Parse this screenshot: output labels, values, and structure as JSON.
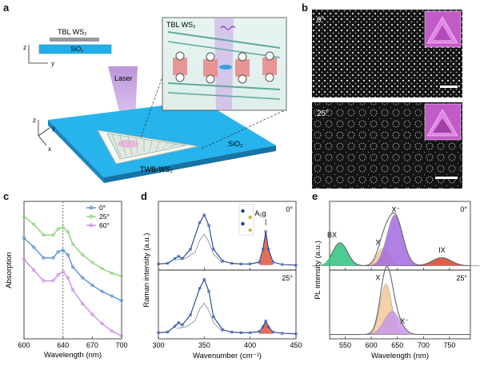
{
  "panels": {
    "a": {
      "letter": "a",
      "substrate_top": "TBL WS₂",
      "substrate_bottom": "SiO₂",
      "axis_z": "z",
      "axis_y": "y",
      "axis_x": "x",
      "laser_label": "Laser",
      "inset_title": "TBL WS₂",
      "sample_label": "TWB-WS₂",
      "substrate_label": "SiO₂"
    },
    "b": {
      "letter": "b",
      "top_angle": "0°",
      "bottom_angle": "25°"
    },
    "c": {
      "letter": "c"
    },
    "d": {
      "letter": "d",
      "peak_label": "A₁g"
    },
    "e": {
      "letter": "e"
    }
  },
  "chart_data": [
    {
      "id": "c",
      "type": "line",
      "title": "",
      "xlabel": "Wavelength (nm)",
      "ylabel": "Absorption",
      "xlim": [
        600,
        700
      ],
      "xticks": [
        600,
        640,
        670,
        700
      ],
      "xtick_labels": [
        "600",
        "640",
        "670",
        "700"
      ],
      "vline_x": 640,
      "legend": [
        "0°",
        "25°",
        "60°"
      ],
      "series": [
        {
          "name": "0°",
          "color": "#5b8fd6",
          "x": [
            600,
            610,
            620,
            630,
            635,
            640,
            645,
            650,
            660,
            670,
            680,
            690,
            700
          ],
          "y": [
            0.66,
            0.6,
            0.53,
            0.53,
            0.57,
            0.58,
            0.55,
            0.47,
            0.4,
            0.35,
            0.31,
            0.28,
            0.25
          ]
        },
        {
          "name": "25°",
          "color": "#8fd17b",
          "x": [
            600,
            610,
            620,
            630,
            635,
            640,
            645,
            650,
            660,
            670,
            680,
            690,
            700
          ],
          "y": [
            0.8,
            0.75,
            0.68,
            0.68,
            0.72,
            0.73,
            0.7,
            0.62,
            0.55,
            0.5,
            0.46,
            0.43,
            0.41
          ]
        },
        {
          "name": "60°",
          "color": "#c890e0",
          "x": [
            600,
            610,
            620,
            630,
            635,
            640,
            645,
            650,
            660,
            670,
            680,
            690,
            700
          ],
          "y": [
            0.52,
            0.45,
            0.38,
            0.38,
            0.42,
            0.44,
            0.4,
            0.32,
            0.23,
            0.16,
            0.1,
            0.05,
            0.02
          ]
        }
      ]
    },
    {
      "id": "d",
      "type": "line",
      "xlabel": "Wavenumber (cm⁻¹)",
      "ylabel": "Raman intensity (a.u.)",
      "xlim": [
        300,
        450
      ],
      "xticks": [
        300,
        350,
        400,
        450
      ],
      "xtick_labels": [
        "300",
        "350",
        "400",
        "450"
      ],
      "subplots": [
        {
          "angle": "0°",
          "x": [
            300,
            310,
            318,
            322,
            326,
            335,
            345,
            350,
            355,
            360,
            370,
            380,
            390,
            400,
            410,
            414,
            417,
            420,
            425,
            435,
            450
          ],
          "y": [
            0.05,
            0.06,
            0.14,
            0.18,
            0.14,
            0.3,
            0.75,
            0.88,
            0.7,
            0.3,
            0.1,
            0.06,
            0.05,
            0.05,
            0.08,
            0.3,
            0.6,
            0.3,
            0.08,
            0.04,
            0.03
          ]
        },
        {
          "angle": "25°",
          "x": [
            300,
            310,
            318,
            322,
            326,
            335,
            345,
            350,
            355,
            360,
            370,
            380,
            390,
            400,
            410,
            414,
            417,
            420,
            425,
            435,
            450
          ],
          "y": [
            0.05,
            0.06,
            0.16,
            0.22,
            0.18,
            0.35,
            0.8,
            0.95,
            0.75,
            0.32,
            0.1,
            0.06,
            0.05,
            0.05,
            0.07,
            0.15,
            0.25,
            0.15,
            0.06,
            0.04,
            0.03
          ]
        }
      ]
    },
    {
      "id": "e",
      "type": "area",
      "xlabel": "Wavelength (nm)",
      "ylabel": "PL intensity (a.u.)",
      "xlim": [
        520,
        790
      ],
      "xticks": [
        550,
        600,
        650,
        700,
        750
      ],
      "xtick_labels": [
        "550",
        "600",
        "650",
        "700",
        "750"
      ],
      "subplots": [
        {
          "angle": "0°",
          "peaks": [
            {
              "label": "BX",
              "center": 540,
              "height": 0.4,
              "width": 14,
              "color": "#2ec27e"
            },
            {
              "label": "X",
              "center": 622,
              "height": 0.3,
              "width": 11,
              "color": "#f5c89b"
            },
            {
              "label": "X⁻",
              "center": 645,
              "height": 0.88,
              "width": 15,
              "color": "#a46be0"
            },
            {
              "label": "IX",
              "center": 735,
              "height": 0.14,
              "width": 18,
              "color": "#d9442c"
            }
          ]
        },
        {
          "angle": "25°",
          "peaks": [
            {
              "label": "X",
              "center": 628,
              "height": 0.88,
              "width": 11,
              "color": "#f5c89b"
            },
            {
              "label": "X⁻",
              "center": 640,
              "height": 0.4,
              "width": 15,
              "color": "#c898ea"
            }
          ]
        }
      ]
    }
  ]
}
